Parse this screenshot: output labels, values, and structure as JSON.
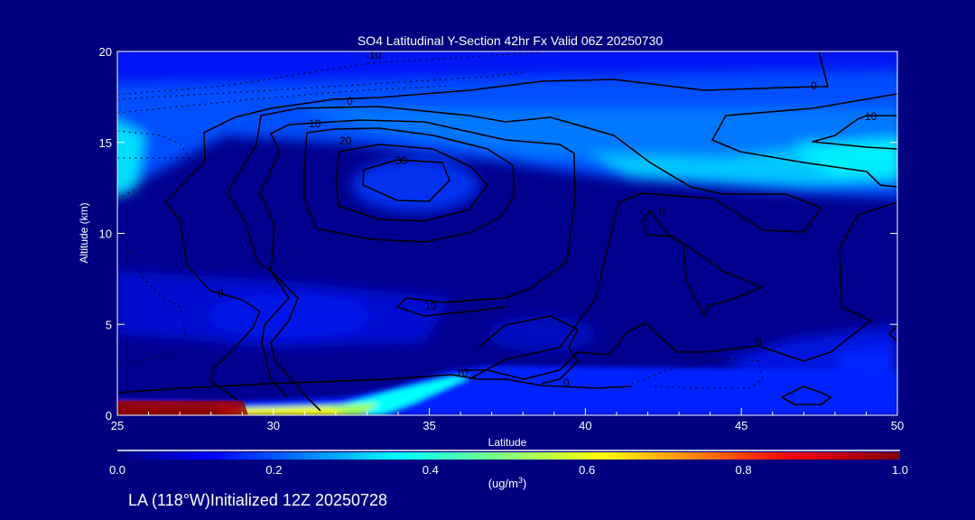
{
  "chart_data": {
    "type": "heatmap",
    "title": "SO4 Latitudinal Y-Section 42hr  Fx Valid 06Z 20250730",
    "xlabel": "Latitude",
    "ylabel": "Altitude (km)",
    "xlim": [
      25,
      50
    ],
    "ylim": [
      0,
      20
    ],
    "xticks": [
      "25",
      "30",
      "35",
      "40",
      "45",
      "50"
    ],
    "yticks": [
      "0",
      "5",
      "10",
      "15",
      "20"
    ],
    "xtick_values": [
      25,
      30,
      35,
      40,
      45,
      50
    ],
    "ytick_values": [
      0,
      5,
      10,
      15,
      20
    ],
    "colorbar": {
      "ticks": [
        "0.0",
        "0.2",
        "0.4",
        "0.6",
        "0.8",
        "1.0"
      ],
      "tick_values": [
        0.0,
        0.2,
        0.4,
        0.6,
        0.8,
        1.0
      ],
      "range": [
        0.0,
        1.0
      ],
      "units_prefix": "(ug/m",
      "units_sup": "3",
      "units_suffix": ")",
      "colors": [
        "#000080",
        "#0000ff",
        "#00ffff",
        "#ffff00",
        "#ff0000",
        "#800000"
      ]
    },
    "contour_labels": {
      "c0a": "0",
      "c0b": "0",
      "c0c": "0",
      "c0d": "0",
      "c0e": "0",
      "c0f": "0",
      "c10a": "10",
      "c10b": "10",
      "c10c": "10",
      "c10d": "10",
      "c20": "20",
      "c30": "30",
      "cm10": "-10"
    },
    "features": {
      "max_concentration_region": {
        "lat": [
          25,
          29
        ],
        "alt_km": [
          0,
          0.5
        ],
        "value": 1.0
      },
      "upper_band_peak": {
        "lat": [
          47,
          50
        ],
        "alt_km": [
          13,
          15
        ],
        "value": 0.35
      },
      "contour_max": {
        "lat": 34.5,
        "alt_km": 13,
        "value": 30
      }
    }
  },
  "footer": {
    "text": "LA (118°W)Initialized 12Z 20250728"
  }
}
